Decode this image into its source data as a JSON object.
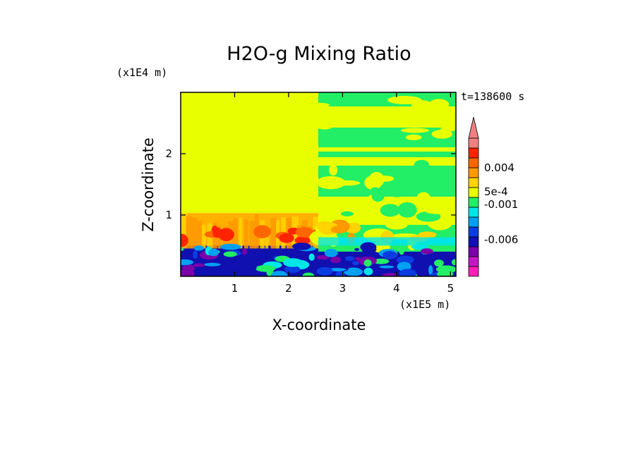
{
  "chart_data": {
    "type": "heatmap",
    "title": "H2O-g Mixing Ratio",
    "xlabel": "X-coordinate",
    "ylabel": "Z-coordinate",
    "x_unit": "(x1E5 m)",
    "y_unit": "(x1E4 m)",
    "time_label": "t=138600 s",
    "xlim": [
      0,
      5.1
    ],
    "ylim": [
      0,
      3.0
    ],
    "x_ticks": [
      1,
      2,
      3,
      4,
      5
    ],
    "y_ticks": [
      1,
      2
    ],
    "colorbar": {
      "colors": [
        "#ff1fb4",
        "#c417c4",
        "#7a00a8",
        "#1010b0",
        "#0a3ce0",
        "#00a0f0",
        "#00e6e6",
        "#22ee66",
        "#e8ff00",
        "#ffd400",
        "#ff9900",
        "#ff6600",
        "#ff2400",
        "#f08080"
      ],
      "labels": [
        "-0.006",
        "-0.001",
        "5e-4",
        "0.004"
      ],
      "extend_top": true
    },
    "regions": [
      {
        "name": "upper-left-uniform",
        "x": [
          0,
          2.55
        ],
        "z": [
          1.03,
          3.0
        ],
        "color": "#e8ff00"
      },
      {
        "name": "lower-left-orange-plumes",
        "x": [
          0,
          2.55
        ],
        "z": [
          0.5,
          1.03
        ],
        "color": "#ffb000"
      },
      {
        "name": "boundary-layer-blue",
        "x": [
          0,
          5.1
        ],
        "z": [
          0,
          0.5
        ],
        "color": "#1010b0"
      },
      {
        "name": "upper-right-mixed",
        "x": [
          2.55,
          5.1
        ],
        "z": [
          0.5,
          3.0
        ],
        "color": "#22ee66"
      }
    ]
  }
}
